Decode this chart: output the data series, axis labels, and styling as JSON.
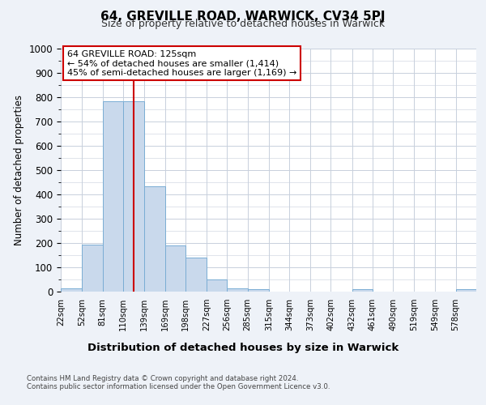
{
  "title": "64, GREVILLE ROAD, WARWICK, CV34 5PJ",
  "subtitle": "Size of property relative to detached houses in Warwick",
  "xlabel": "Distribution of detached houses by size in Warwick",
  "ylabel": "Number of detached properties",
  "bin_edges": [
    22,
    52,
    81,
    110,
    139,
    169,
    198,
    227,
    256,
    285,
    315,
    344,
    373,
    402,
    432,
    461,
    490,
    519,
    549,
    578,
    607
  ],
  "bar_heights": [
    15,
    195,
    782,
    785,
    435,
    190,
    140,
    50,
    15,
    10,
    0,
    0,
    0,
    0,
    10,
    0,
    0,
    0,
    0,
    10
  ],
  "bar_color": "#c9d9ec",
  "bar_edgecolor": "#7aadd4",
  "vline_x": 125,
  "vline_color": "#cc0000",
  "annotation_line1": "64 GREVILLE ROAD: 125sqm",
  "annotation_line2": "← 54% of detached houses are smaller (1,414)",
  "annotation_line3": "45% of semi-detached houses are larger (1,169) →",
  "annotation_box_color": "#ffffff",
  "annotation_box_edgecolor": "#cc0000",
  "ylim": [
    0,
    1000
  ],
  "yticks": [
    0,
    100,
    200,
    300,
    400,
    500,
    600,
    700,
    800,
    900,
    1000
  ],
  "background_color": "#eef2f8",
  "plot_background": "#ffffff",
  "grid_color": "#c8d0dc",
  "title_fontsize": 11,
  "subtitle_fontsize": 9,
  "ylabel_fontsize": 8.5,
  "xlabel_fontsize": 9.5,
  "footer_line1": "Contains HM Land Registry data © Crown copyright and database right 2024.",
  "footer_line2": "Contains public sector information licensed under the Open Government Licence v3.0."
}
